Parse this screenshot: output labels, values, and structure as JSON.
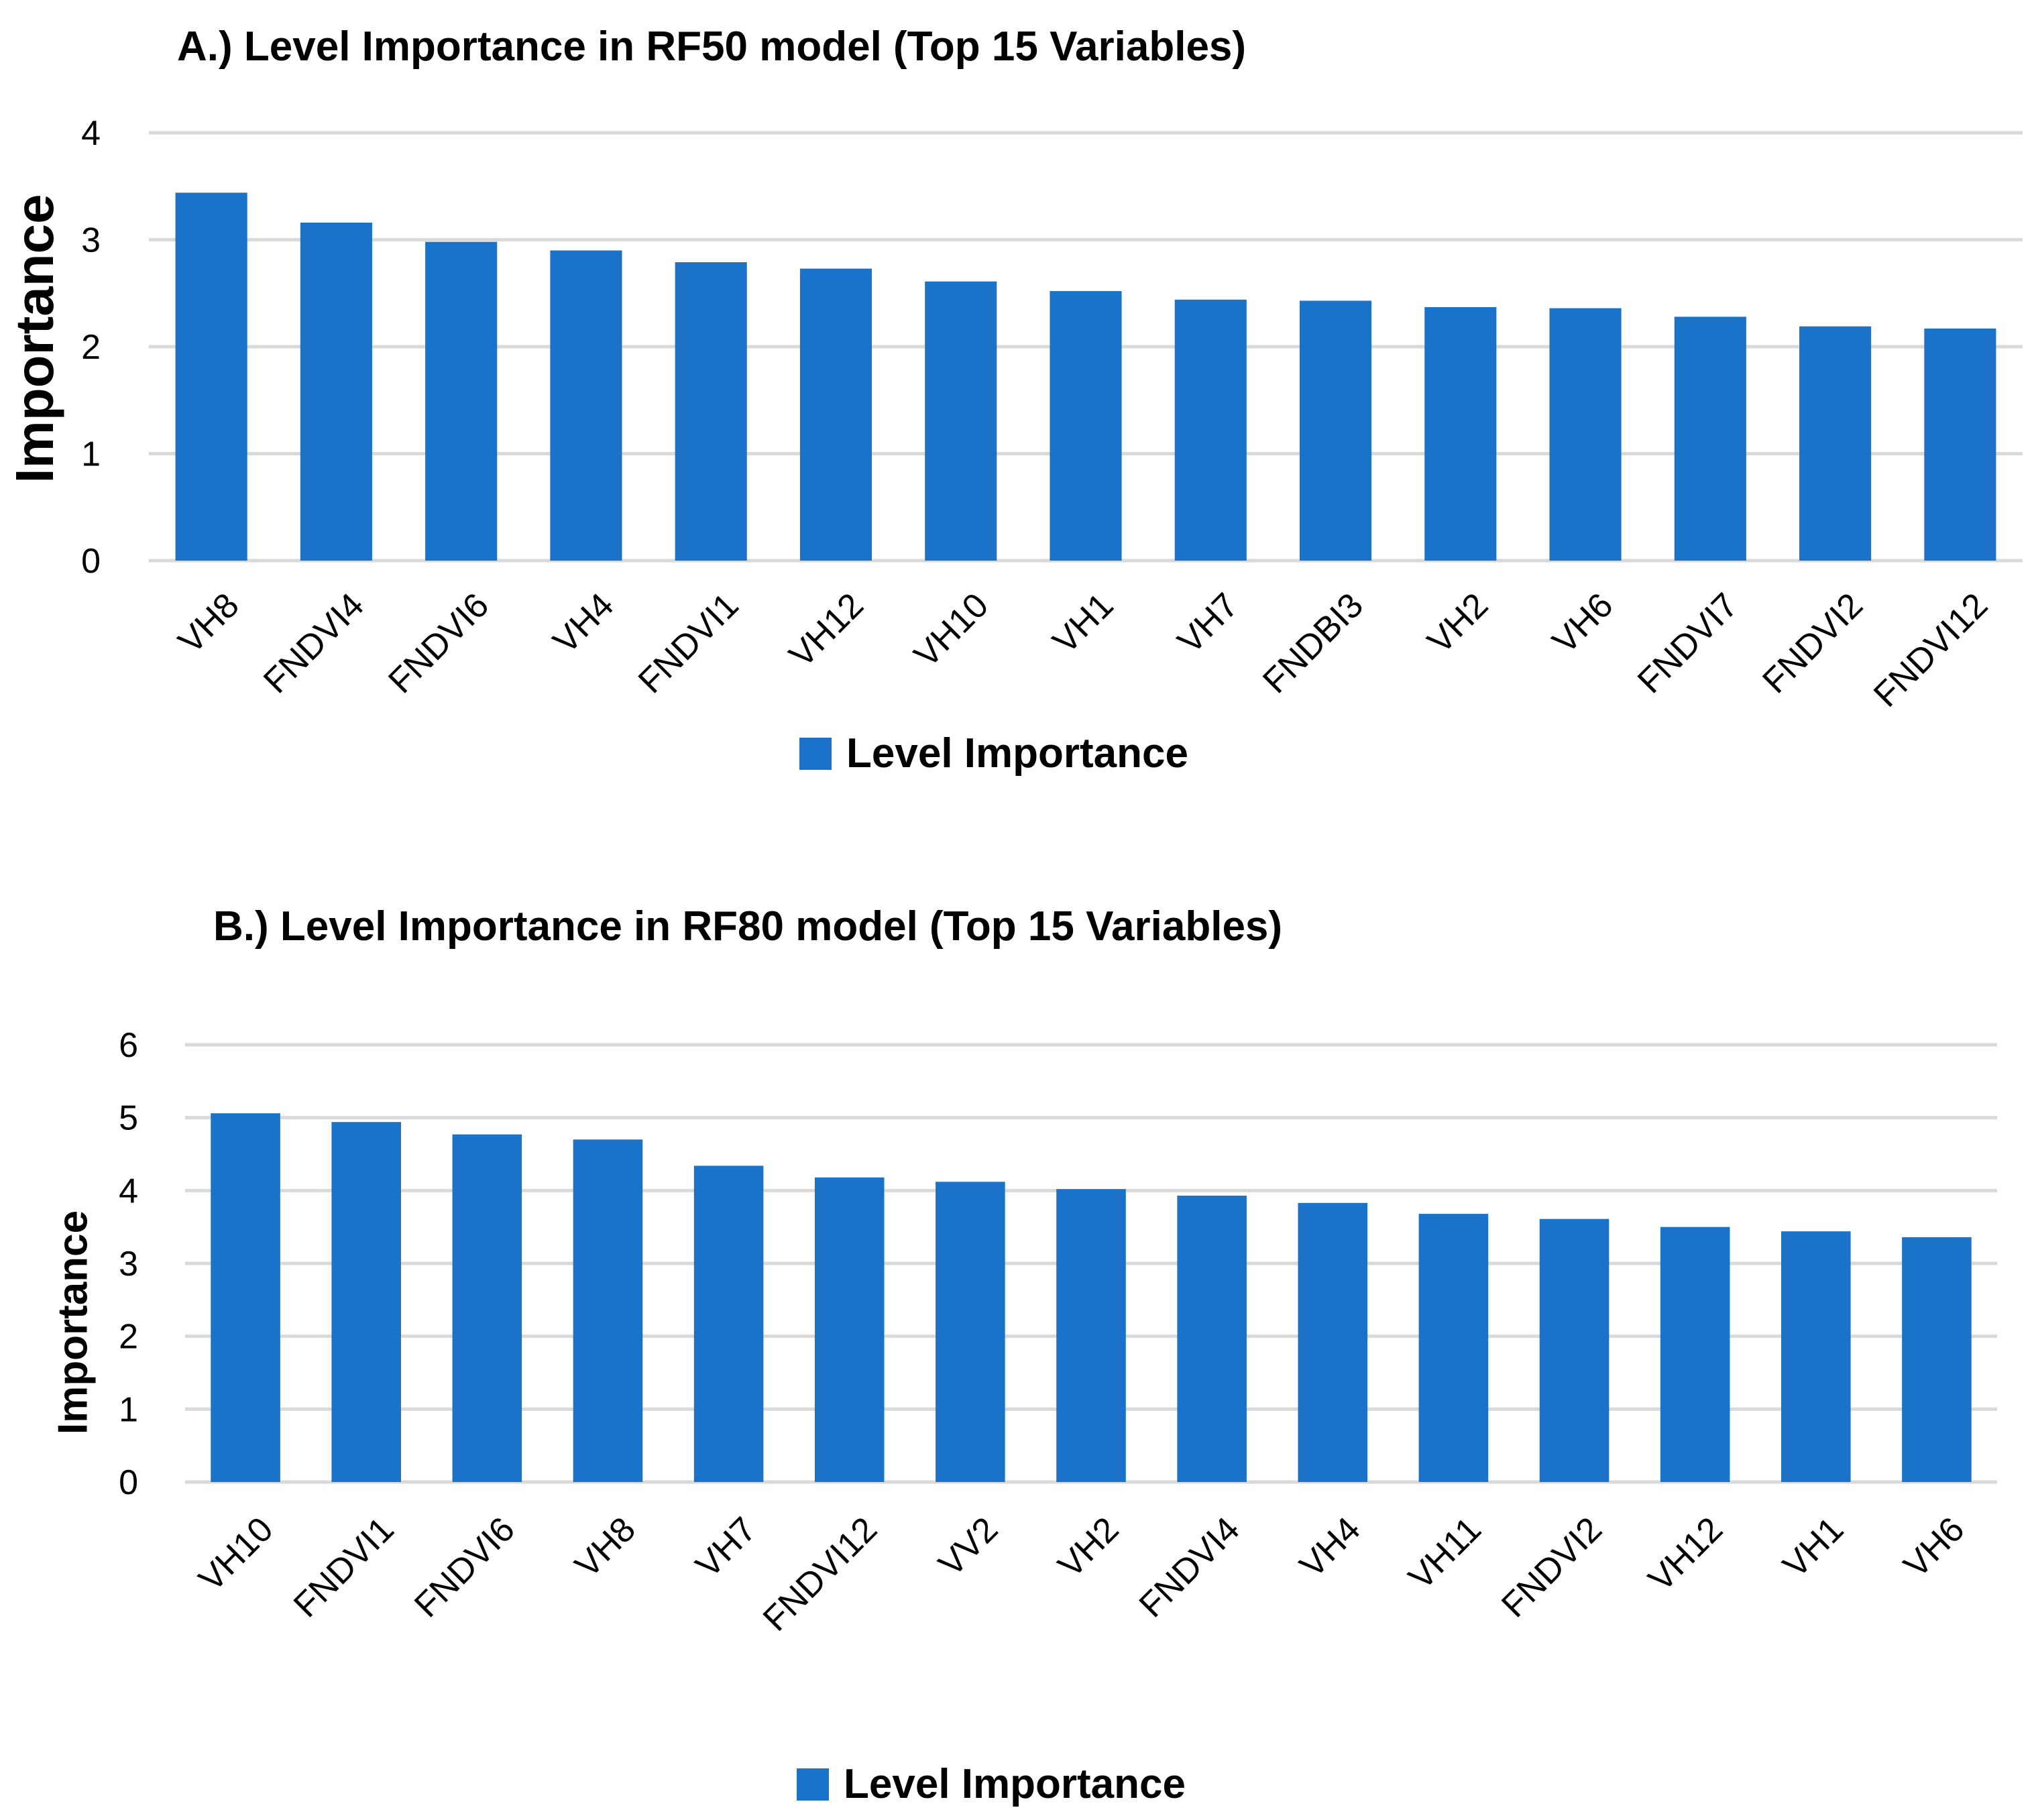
{
  "chart_data": [
    {
      "type": "bar",
      "title": "A.) Level Importance in RF50 model (Top 15 Variables)",
      "xlabel": "",
      "ylabel": "Importance",
      "ylim": [
        0,
        4
      ],
      "yticks": [
        "0",
        "1",
        "2",
        "3",
        "4"
      ],
      "grid": true,
      "legend": "Level Importance",
      "legend_position": "bottom",
      "categories": [
        "VH8",
        "FNDVI4",
        "FNDVI6",
        "VH4",
        "FNDVI1",
        "VH12",
        "VH10",
        "VH1",
        "VH7",
        "FNDBI3",
        "VH2",
        "VH6",
        "FNDVI7",
        "FNDVI2",
        "FNDVI12"
      ],
      "series": [
        {
          "name": "Level Importance",
          "color": "#1a73c8",
          "values": [
            3.44,
            3.16,
            2.98,
            2.9,
            2.79,
            2.73,
            2.61,
            2.52,
            2.44,
            2.43,
            2.37,
            2.36,
            2.28,
            2.19,
            2.17
          ]
        }
      ]
    },
    {
      "type": "bar",
      "title": "B.) Level Importance in RF80 model (Top 15 Variables)",
      "xlabel": "",
      "ylabel": "Importance",
      "ylim": [
        0,
        6
      ],
      "yticks": [
        "0",
        "1",
        "2",
        "3",
        "4",
        "5",
        "6"
      ],
      "grid": true,
      "legend": "Level Importance",
      "legend_position": "bottom",
      "categories": [
        "VH10",
        "FNDVI1",
        "FNDVI6",
        "VH8",
        "VH7",
        "FNDVI12",
        "VV2",
        "VH2",
        "FNDVI4",
        "VH4",
        "VH11",
        "FNDVI2",
        "VH12",
        "VH1",
        "VH6"
      ],
      "series": [
        {
          "name": "Level Importance",
          "color": "#1a73c8",
          "values": [
            5.06,
            4.94,
            4.77,
            4.7,
            4.34,
            4.18,
            4.12,
            4.02,
            3.93,
            3.83,
            3.68,
            3.61,
            3.5,
            3.44,
            3.36
          ]
        }
      ]
    }
  ]
}
